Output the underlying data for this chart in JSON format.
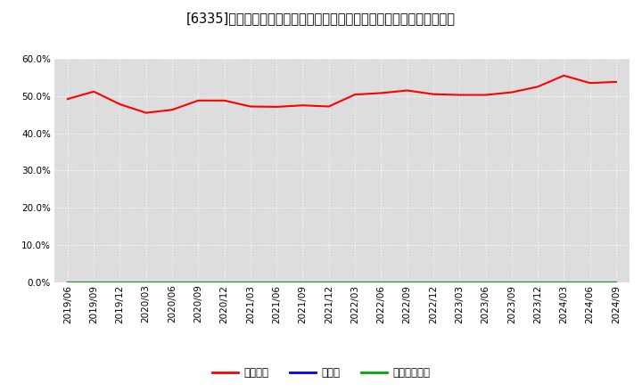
{
  "title": "[6335]　自己資本、のれん、繰延税金資産の総資産に対する比率の推移",
  "x_labels": [
    "2019/06",
    "2019/09",
    "2019/12",
    "2020/03",
    "2020/06",
    "2020/09",
    "2020/12",
    "2021/03",
    "2021/06",
    "2021/09",
    "2021/12",
    "2022/03",
    "2022/06",
    "2022/09",
    "2022/12",
    "2023/03",
    "2023/06",
    "2023/09",
    "2023/12",
    "2024/03",
    "2024/06",
    "2024/09"
  ],
  "equity_ratio": [
    49.2,
    51.2,
    47.8,
    45.5,
    46.3,
    48.8,
    48.8,
    47.2,
    47.1,
    47.5,
    47.2,
    50.4,
    50.8,
    51.5,
    50.5,
    50.3,
    50.3,
    51.0,
    52.5,
    55.5,
    53.5,
    53.8
  ],
  "noren_ratio": [
    0.0,
    0.0,
    0.0,
    0.0,
    0.0,
    0.0,
    0.0,
    0.0,
    0.0,
    0.0,
    0.0,
    0.0,
    0.0,
    0.0,
    0.0,
    0.0,
    0.0,
    0.0,
    0.0,
    0.0,
    0.0,
    0.0
  ],
  "deferred_tax_ratio": [
    0.0,
    0.0,
    0.0,
    0.0,
    0.0,
    0.0,
    0.0,
    0.0,
    0.0,
    0.0,
    0.0,
    0.0,
    0.0,
    0.0,
    0.0,
    0.0,
    0.0,
    0.0,
    0.0,
    0.0,
    0.0,
    0.0
  ],
  "equity_color": "#ff0000",
  "noren_color": "#0000ff",
  "deferred_tax_color": "#00aa00",
  "bg_color": "#ffffff",
  "plot_bg_color": "#dddddd",
  "grid_color": "#ffffff",
  "ylim": [
    0,
    60
  ],
  "yticks": [
    0.0,
    10.0,
    20.0,
    30.0,
    40.0,
    50.0,
    60.0
  ],
  "legend_labels": [
    "自己資本",
    "のれん",
    "繰延税金資産"
  ],
  "title_fontsize": 10.5,
  "tick_fontsize": 7.5,
  "legend_fontsize": 8.5
}
